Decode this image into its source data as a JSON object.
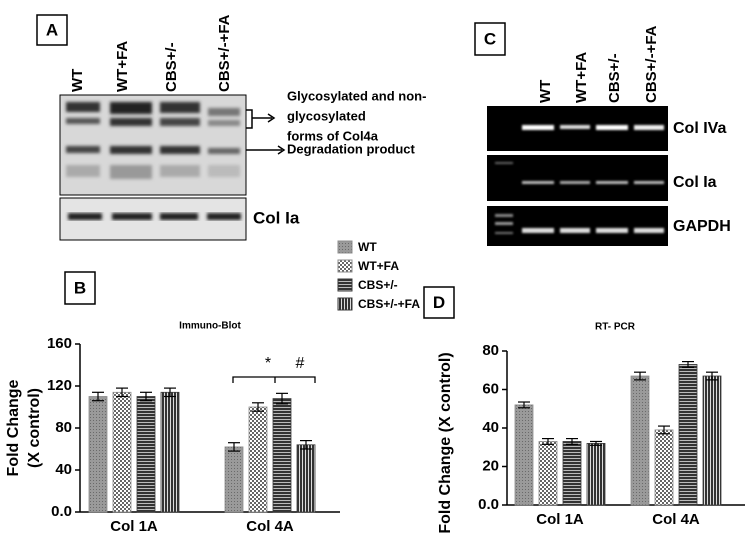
{
  "panels": {
    "A": {
      "label": "A",
      "lanes": [
        "WT",
        "WT+FA",
        "CBS+/-",
        "CBS+/-+FA"
      ],
      "annotation_lines": [
        "Glycosylated and non-",
        "glycosylated",
        "forms of Col4a"
      ],
      "degradation": "Degradation product",
      "lower_blot": "Col Ia"
    },
    "B": {
      "label": "B"
    },
    "C": {
      "label": "C",
      "lanes": [
        "WT",
        "WT+FA",
        "CBS+/-",
        "CBS+/-+FA"
      ],
      "gels": [
        "Col IVa",
        "Col Ia",
        "GAPDH"
      ]
    },
    "D": {
      "label": "D"
    }
  },
  "chart_data": [
    {
      "type": "bar",
      "title": "Immuno-Blot",
      "ylabel_lines": [
        "Fold Change",
        "(X control)"
      ],
      "categories": [
        "Col 1A",
        "Col 4A"
      ],
      "series": [
        {
          "name": "WT",
          "color": "#8c8c8c",
          "values": [
            110,
            62
          ],
          "errors": [
            4,
            4
          ]
        },
        {
          "name": "WT+FA",
          "color": "#8c8c8c",
          "values": [
            114,
            100
          ],
          "errors": [
            4,
            4
          ]
        },
        {
          "name": "CBS+/-",
          "color": "#3a3a3a",
          "values": [
            110,
            108
          ],
          "errors": [
            4,
            5
          ]
        },
        {
          "name": "CBS+/-+FA",
          "color": "#3a3a3a",
          "values": [
            114,
            64
          ],
          "errors": [
            4,
            4
          ]
        }
      ],
      "ylim": [
        0,
        160
      ],
      "yticks": [
        {
          "value": 0,
          "label": "0.0"
        },
        40,
        80,
        120,
        160
      ],
      "annotations": [
        "*",
        "#"
      ]
    },
    {
      "type": "bar",
      "title": "RT- PCR",
      "ylabel": "Fold Change (X control)",
      "categories": [
        "Col 1A",
        "Col 4A"
      ],
      "series": [
        {
          "color": "#8c8c8c",
          "values": [
            52,
            67
          ],
          "errors": [
            1.5,
            2
          ]
        },
        {
          "color": "#8c8c8c",
          "values": [
            33,
            39
          ],
          "errors": [
            1.5,
            2
          ]
        },
        {
          "color": "#3a3a3a",
          "values": [
            33,
            73
          ],
          "errors": [
            1.5,
            1.5
          ]
        },
        {
          "color": "#3a3a3a",
          "values": [
            32,
            67
          ],
          "errors": [
            1,
            2
          ]
        }
      ],
      "ylim": [
        0,
        80
      ],
      "yticks": [
        {
          "value": 0,
          "label": "0.0"
        },
        20,
        40,
        60,
        80
      ]
    }
  ]
}
